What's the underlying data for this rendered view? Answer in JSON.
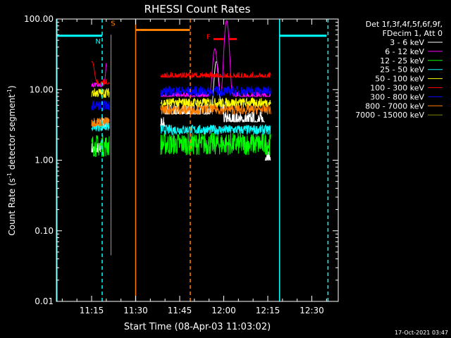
{
  "chart_data": {
    "type": "line",
    "title": "RHESSI Count Rates",
    "xlabel": "Start Time (08-Apr-03 11:03:02)",
    "ylabel": "Count Rate (s",
    "ylabel_sup": "-1",
    "ylabel_tail": " detector segment",
    "ylabel_sup2": "-1",
    "ylabel_end": ")",
    "yscale": "log",
    "ylim": [
      0.01,
      100
    ],
    "xlim_minutes": [
      663.0,
      759.0
    ],
    "y_ticks": [
      {
        "v": 100,
        "label": "100.00"
      },
      {
        "v": 10,
        "label": "10.00"
      },
      {
        "v": 1,
        "label": "1.00"
      },
      {
        "v": 0.1,
        "label": "0.10"
      },
      {
        "v": 0.01,
        "label": "0.01"
      }
    ],
    "x_ticks": [
      {
        "t": 675,
        "label": "11:15"
      },
      {
        "t": 690,
        "label": "11:30"
      },
      {
        "t": 705,
        "label": "11:45"
      },
      {
        "t": 720,
        "label": "12:00"
      },
      {
        "t": 735,
        "label": "12:15"
      },
      {
        "t": 750,
        "label": "12:30"
      }
    ],
    "legend_header": [
      "Det 1f,3f,4f,5f,6f,9f,",
      "FDecim 1, Att 0"
    ],
    "legend_placement": "right, outside plot",
    "series": [
      {
        "name": "3 - 6 keV",
        "color": "#ffffff",
        "segments": [
          {
            "t0": 675.0,
            "t1": 678.0,
            "level": 1.3
          },
          {
            "t0": 678.0,
            "t1": 681.0,
            "level": 3.0
          },
          {
            "t0": 698.5,
            "t1": 700.0,
            "level": 3.0
          },
          {
            "t0": 700.0,
            "t1": 720.0,
            "level": 4.5
          },
          {
            "t0": 720.0,
            "t1": 734.0,
            "level": 3.5
          },
          {
            "t0": 734.0,
            "t1": 736.0,
            "level": 1.0
          }
        ],
        "peaks": [
          {
            "t": 717.5,
            "v": 25
          }
        ]
      },
      {
        "name": "6 - 12 keV",
        "color": "#ff00ff",
        "segments": [
          {
            "t0": 675.0,
            "t1": 680.0,
            "level": 11.0
          },
          {
            "t0": 698.5,
            "t1": 736.0,
            "level": 8.0
          }
        ],
        "peaks": [
          {
            "t": 681.0,
            "v": 55
          },
          {
            "t": 717.0,
            "v": 38
          },
          {
            "t": 721.0,
            "v": 95
          }
        ]
      },
      {
        "name": "12 - 25 keV",
        "color": "#00ff00",
        "segments": [
          {
            "t0": 675.0,
            "t1": 681.0,
            "level": 1.6
          },
          {
            "t0": 698.5,
            "t1": 736.0,
            "level": 1.7
          }
        ],
        "peaks": []
      },
      {
        "name": "25 - 50 keV",
        "color": "#00ffff",
        "segments": [
          {
            "t0": 675.0,
            "t1": 681.0,
            "level": 3.0
          },
          {
            "t0": 698.5,
            "t1": 736.0,
            "level": 2.7
          }
        ],
        "peaks": []
      },
      {
        "name": "50 - 100 keV",
        "color": "#ffff00",
        "segments": [
          {
            "t0": 675.0,
            "t1": 681.0,
            "level": 9.0
          },
          {
            "t0": 698.5,
            "t1": 736.0,
            "level": 6.5
          }
        ],
        "peaks": []
      },
      {
        "name": "100 - 300 keV",
        "color": "#ff0000",
        "segments": [
          {
            "t0": 675.0,
            "t1": 681.0,
            "level": 12.0
          },
          {
            "t0": 698.5,
            "t1": 736.0,
            "level": 15.0
          }
        ],
        "peaks": [
          {
            "t": 675.2,
            "v": 25
          }
        ]
      },
      {
        "name": "300 - 800 keV",
        "color": "#0000ff",
        "segments": [
          {
            "t0": 675.0,
            "t1": 681.0,
            "level": 6.0
          },
          {
            "t0": 698.5,
            "t1": 736.0,
            "level": 9.5
          }
        ],
        "peaks": []
      },
      {
        "name": "800 - 7000 keV",
        "color": "#ff8000",
        "segments": [
          {
            "t0": 675.0,
            "t1": 681.0,
            "level": 3.5
          },
          {
            "t0": 698.5,
            "t1": 736.0,
            "level": 5.2
          }
        ],
        "peaks": []
      },
      {
        "name": "7000 - 15000 keV",
        "color": "#808000",
        "segments": [],
        "peaks": []
      }
    ],
    "annotations": {
      "attenuator_bars": [
        {
          "t0": 663.0,
          "t1": 678.6,
          "v": 58,
          "color": "#00ffff"
        },
        {
          "t0": 739.0,
          "t1": 755.0,
          "v": 58,
          "color": "#00ffff"
        },
        {
          "t0": 690.0,
          "t1": 708.5,
          "v": 70,
          "color": "#ff8000"
        },
        {
          "t0": 716.5,
          "t1": 720.0,
          "v": 52,
          "color": "#ff0000"
        },
        {
          "t0": 721.8,
          "t1": 724.5,
          "v": 52,
          "color": "#ff0000"
        }
      ],
      "vlines": [
        {
          "t": 663.2,
          "style": "solid",
          "color": "#00ffff"
        },
        {
          "t": 678.6,
          "style": "dashed",
          "color": "#00ffff"
        },
        {
          "t": 690.0,
          "style": "solid",
          "color": "#ff8000"
        },
        {
          "t": 708.6,
          "style": "dashed",
          "color": "#ff8000"
        },
        {
          "t": 739.0,
          "style": "solid",
          "color": "#00ffff"
        },
        {
          "t": 755.5,
          "style": "dashed",
          "color": "#00ffff"
        }
      ],
      "labels": [
        {
          "text": "N",
          "t": 677.2,
          "v": 45,
          "color": "#00ffff"
        },
        {
          "text": "S",
          "t": 682.3,
          "v": 80,
          "color": "#ff8000"
        },
        {
          "text": "F",
          "t": 714.8,
          "v": 52,
          "color": "#ff0000"
        }
      ],
      "orange_spike": {
        "t": 681.6,
        "vmin": 0.045,
        "vmax": 60
      }
    },
    "footer_timestamp": "17-Oct-2021 03:47"
  }
}
